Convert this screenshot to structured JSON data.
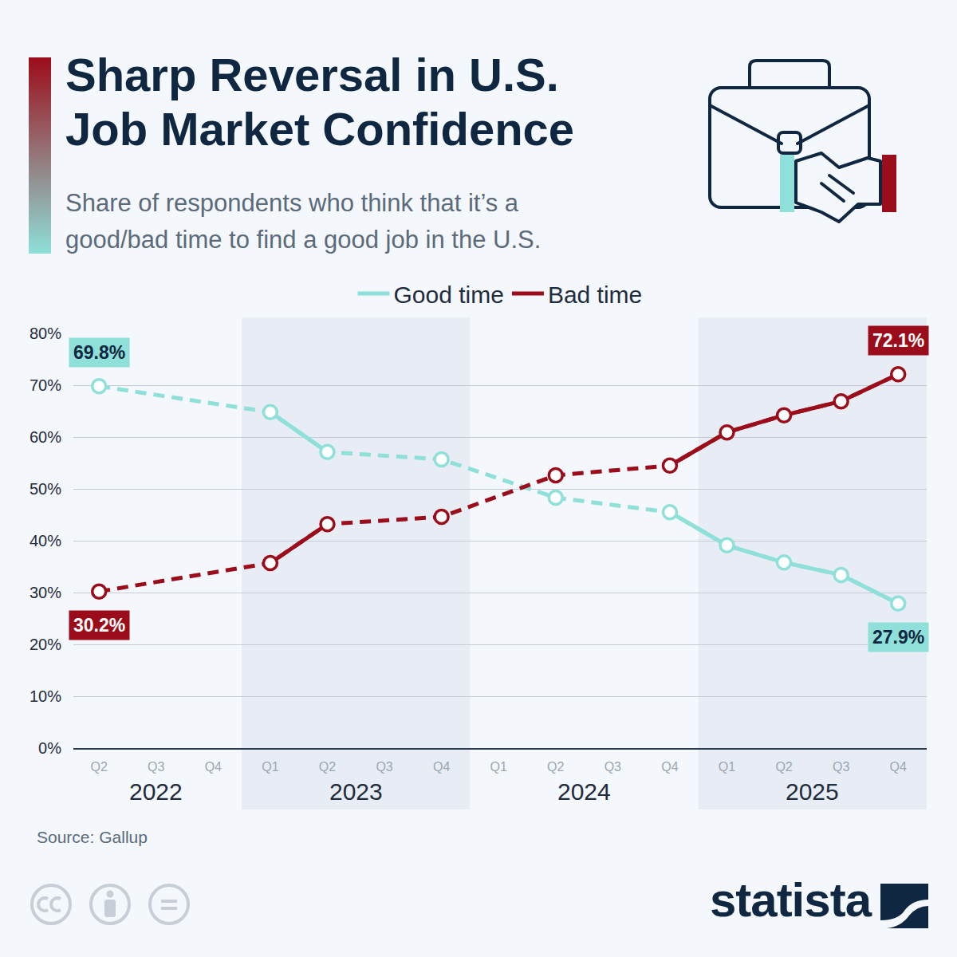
{
  "chart_data": {
    "type": "line",
    "title": "Sharp Reversal in U.S. Job Market Confidence",
    "subtitle": "Share of respondents who think that it’s a good/bad time to find a good job in the U.S.",
    "categories": [
      "Q2",
      "Q3",
      "Q4",
      "Q1",
      "Q2",
      "Q3",
      "Q4",
      "Q1",
      "Q2",
      "Q3",
      "Q4",
      "Q1",
      "Q2",
      "Q3",
      "Q4"
    ],
    "groups": [
      {
        "label": "2022",
        "size": 3
      },
      {
        "label": "2023",
        "size": 4
      },
      {
        "label": "2024",
        "size": 4
      },
      {
        "label": "2025",
        "size": 4
      }
    ],
    "series": [
      {
        "name": "Good time",
        "color": "#8ee0d9",
        "values": [
          69.8,
          null,
          null,
          64.8,
          57.1,
          null,
          55.7,
          null,
          48.3,
          null,
          45.5,
          39.1,
          35.8,
          33.4,
          27.9
        ],
        "value_labels": [
          "69.8%",
          null,
          null,
          null,
          null,
          null,
          null,
          null,
          null,
          null,
          null,
          null,
          null,
          null,
          "27.9%"
        ]
      },
      {
        "name": "Bad time",
        "color": "#9b0d1a",
        "values": [
          30.2,
          null,
          null,
          35.7,
          43.2,
          null,
          44.6,
          null,
          52.6,
          null,
          54.5,
          60.9,
          64.2,
          66.9,
          72.1
        ],
        "value_labels": [
          "30.2%",
          null,
          null,
          null,
          null,
          null,
          null,
          null,
          null,
          null,
          null,
          null,
          null,
          null,
          "72.1%"
        ]
      }
    ],
    "ylim": [
      0,
      80
    ],
    "yticks": [
      {
        "value": 0,
        "label": "0%"
      },
      {
        "value": 10,
        "label": "10%"
      },
      {
        "value": 20,
        "label": "20%"
      },
      {
        "value": 30,
        "label": "30%"
      },
      {
        "value": 40,
        "label": "40%"
      },
      {
        "value": 50,
        "label": "50%"
      },
      {
        "value": 60,
        "label": "60%"
      },
      {
        "value": 70,
        "label": "70%"
      },
      {
        "value": 80,
        "label": "80%"
      }
    ],
    "grid": true,
    "legend": "top",
    "source": "Source: Gallup",
    "brand": "statista"
  }
}
